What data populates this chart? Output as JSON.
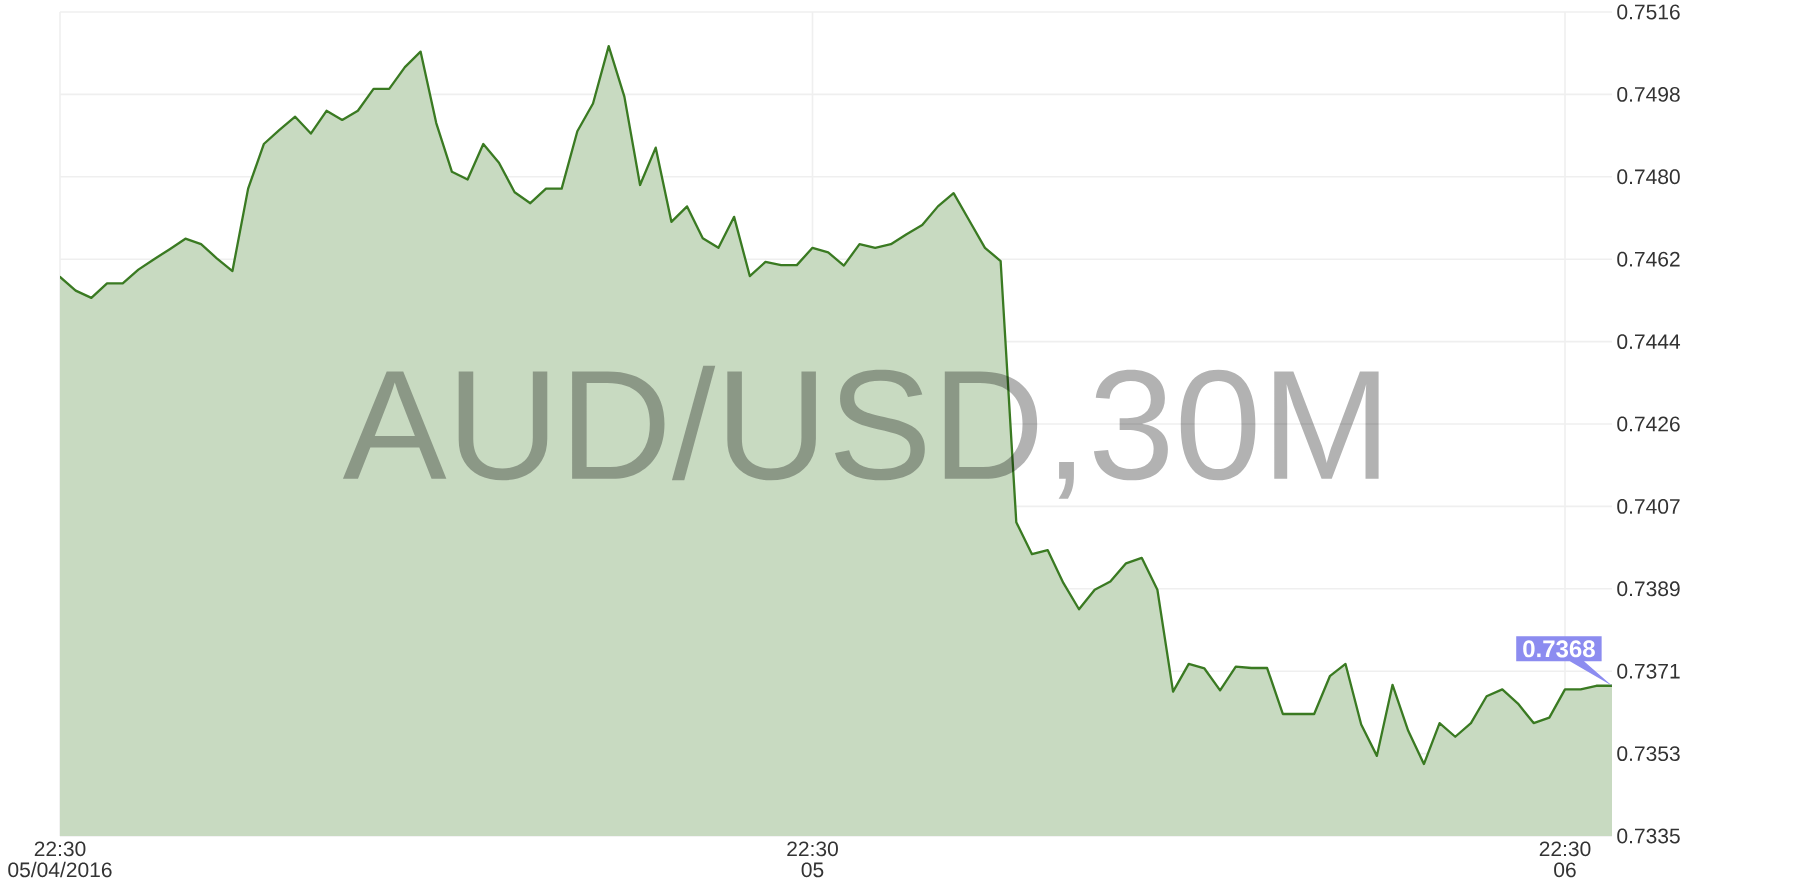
{
  "chart_data": {
    "type": "area",
    "title": "AUD/USD,30M",
    "x": [
      "2016-05-04T22:30",
      "2016-05-04T23:00",
      "2016-05-04T23:30",
      "2016-05-05T00:00",
      "2016-05-05T00:30",
      "2016-05-05T01:00",
      "2016-05-05T01:30",
      "2016-05-05T02:00",
      "2016-05-05T02:30",
      "2016-05-05T03:00",
      "2016-05-05T03:30",
      "2016-05-05T04:00",
      "2016-05-05T04:30",
      "2016-05-05T05:00",
      "2016-05-05T05:30",
      "2016-05-05T06:00",
      "2016-05-05T06:30",
      "2016-05-05T07:00",
      "2016-05-05T07:30",
      "2016-05-05T08:00",
      "2016-05-05T08:30",
      "2016-05-05T09:00",
      "2016-05-05T09:30",
      "2016-05-05T10:00",
      "2016-05-05T10:30",
      "2016-05-05T11:00",
      "2016-05-05T11:30",
      "2016-05-05T12:00",
      "2016-05-05T12:30",
      "2016-05-05T13:00",
      "2016-05-05T13:30",
      "2016-05-05T14:00",
      "2016-05-05T14:30",
      "2016-05-05T15:00",
      "2016-05-05T15:30",
      "2016-05-05T16:00",
      "2016-05-05T16:30",
      "2016-05-05T17:00",
      "2016-05-05T17:30",
      "2016-05-05T18:00",
      "2016-05-05T18:30",
      "2016-05-05T19:00",
      "2016-05-05T19:30",
      "2016-05-05T20:00",
      "2016-05-05T20:30",
      "2016-05-05T21:00",
      "2016-05-05T21:30",
      "2016-05-05T22:00",
      "2016-05-05T22:30",
      "2016-05-05T23:00",
      "2016-05-05T23:30",
      "2016-05-06T00:00",
      "2016-05-06T00:30",
      "2016-05-06T01:00",
      "2016-05-06T01:30",
      "2016-05-06T02:00",
      "2016-05-06T02:30",
      "2016-05-06T03:00",
      "2016-05-06T03:30",
      "2016-05-06T04:00",
      "2016-05-06T04:30",
      "2016-05-06T05:00",
      "2016-05-06T05:30",
      "2016-05-06T06:00",
      "2016-05-06T06:30",
      "2016-05-06T07:00",
      "2016-05-06T07:30",
      "2016-05-06T08:00",
      "2016-05-06T08:30",
      "2016-05-06T09:00",
      "2016-05-06T09:30",
      "2016-05-06T10:00",
      "2016-05-06T10:30",
      "2016-05-06T11:00",
      "2016-05-06T11:30",
      "2016-05-06T12:00",
      "2016-05-06T12:30",
      "2016-05-06T13:00",
      "2016-05-06T13:30",
      "2016-05-06T14:00",
      "2016-05-06T14:30",
      "2016-05-06T15:00",
      "2016-05-06T15:30",
      "2016-05-06T16:00",
      "2016-05-06T16:30",
      "2016-05-06T17:00",
      "2016-05-06T17:30",
      "2016-05-06T18:00",
      "2016-05-06T18:30",
      "2016-05-06T19:00",
      "2016-05-06T19:30",
      "2016-05-06T20:00",
      "2016-05-06T20:30",
      "2016-05-06T21:00",
      "2016-05-06T21:30",
      "2016-05-06T22:00",
      "2016-05-06T22:30",
      "2016-05-06T23:00",
      "2016-05-06T23:30",
      "2016-05-07T00:00"
    ],
    "series": [
      {
        "color": "#3a7a22",
        "values": [
          0.74578,
          0.74548,
          0.74532,
          0.74564,
          0.74564,
          0.74594,
          0.74617,
          0.74639,
          0.74662,
          0.7465,
          0.74619,
          0.74591,
          0.74772,
          0.7487,
          0.74901,
          0.7493,
          0.74893,
          0.74943,
          0.74923,
          0.74943,
          0.74991,
          0.74991,
          0.75039,
          0.75073,
          0.74916,
          0.74809,
          0.74792,
          0.7487,
          0.74829,
          0.74764,
          0.7474,
          0.74772,
          0.74772,
          0.74898,
          0.74959,
          0.75085,
          0.74974,
          0.7478,
          0.74862,
          0.74699,
          0.74733,
          0.74663,
          0.74642,
          0.7471,
          0.7458,
          0.74611,
          0.74604,
          0.74604,
          0.74642,
          0.74632,
          0.74603,
          0.7465,
          0.74642,
          0.7465,
          0.74672,
          0.74692,
          0.74733,
          0.74762,
          0.74702,
          0.74642,
          0.74613,
          0.74039,
          0.73969,
          0.73978,
          0.73906,
          0.73848,
          0.73891,
          0.73909,
          0.73949,
          0.73961,
          0.73891,
          0.73667,
          0.73728,
          0.73718,
          0.7367,
          0.73722,
          0.73719,
          0.73719,
          0.73618,
          0.73618,
          0.73618,
          0.73701,
          0.73728,
          0.73595,
          0.73526,
          0.73682,
          0.73581,
          0.73508,
          0.73598,
          0.73568,
          0.73598,
          0.73657,
          0.73672,
          0.73641,
          0.73598,
          0.7361,
          0.73672,
          0.73672,
          0.7368,
          0.7368
        ]
      }
    ],
    "xlim": [
      "2016-05-04T22:30",
      "2016-05-07T00:00"
    ],
    "xticks": [
      {
        "value": "2016-05-04T22:30",
        "label": "22:30 05/04/2016"
      },
      {
        "value": "2016-05-05T22:30",
        "label": "22:30 05"
      },
      {
        "value": "2016-05-06T22:30",
        "label": "22:30 06"
      }
    ],
    "ylim": [
      0.7335,
      0.7516
    ],
    "yticks": [
      0.7335,
      {
        "value": 0.73531,
        "label": "0.7353"
      },
      {
        "value": 0.73712,
        "label": "0.7371"
      },
      {
        "value": 0.73893,
        "label": "0.7389"
      },
      {
        "value": 0.74074,
        "label": "0.7407"
      },
      {
        "value": 0.74255,
        "label": "0.7426"
      },
      {
        "value": 0.74436,
        "label": "0.7444"
      },
      {
        "value": 0.74617,
        "label": "0.7462"
      },
      {
        "value": 0.74798,
        "label": "0.7480"
      },
      {
        "value": 0.74979,
        "label": "0.7498"
      },
      0.7516
    ],
    "grid": true,
    "annotations": [
      {
        "text": "0.7368",
        "x": "2016-05-07T00:00",
        "y": 0.7368
      }
    ]
  }
}
